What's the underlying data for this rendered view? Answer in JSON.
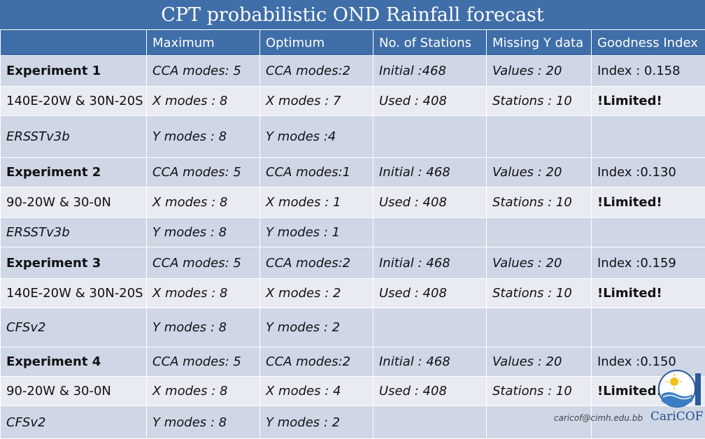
{
  "title": "CPT probabilistic OND Rainfall forecast",
  "header": [
    "",
    "Maximum",
    "Optimum",
    "No. of Stations",
    "Missing Y data",
    "Goodness Index"
  ],
  "rows": [
    [
      "Experiment 1",
      "CCA modes: 5",
      "CCA modes:2",
      "Initial :468",
      "Values : 20",
      "Index : 0.158"
    ],
    [
      "140E-20W & 30N-20S",
      "X modes : 8",
      "X modes : 7",
      "Used : 408",
      "Stations : 10",
      "!Limited!"
    ],
    [
      "ERSSTv3b",
      "Y modes : 8",
      "Y modes :4",
      "",
      "",
      ""
    ],
    [
      "Experiment 2",
      "CCA modes: 5",
      "CCA modes:1",
      "Initial : 468",
      "Values : 20",
      "Index :0.130"
    ],
    [
      "90-20W & 30-0N",
      "X modes : 8",
      "X modes : 1",
      "Used : 408",
      "Stations : 10",
      "!Limited!"
    ],
    [
      "ERSSTv3b",
      "Y modes : 8",
      "Y modes : 1",
      "",
      "",
      ""
    ],
    [
      "Experiment 3",
      "CCA modes: 5",
      "CCA modes:2",
      "Initial : 468",
      "Values : 20",
      "Index :0.159"
    ],
    [
      "140E-20W & 30N-20S",
      "X modes : 8",
      "X modes : 2",
      "Used : 408",
      "Stations : 10",
      "!Limited!"
    ],
    [
      "CFSv2",
      "Y modes : 8",
      "Y modes : 2",
      "",
      "",
      ""
    ],
    [
      "Experiment 4",
      "CCA modes: 5",
      "CCA modes:2",
      "Initial : 468",
      "Values : 20",
      "Index :0.150"
    ],
    [
      "90-20W & 30-0N",
      "X modes : 8",
      "X modes : 4",
      "Used : 408",
      "Stations : 10",
      "!Limited!"
    ],
    [
      "CFSv2",
      "Y modes : 8",
      "Y modes : 2",
      "",
      "",
      ""
    ]
  ],
  "footer": {
    "email": "caricof@cimh.edu.bb",
    "brand": "CariCOF"
  },
  "colors": {
    "header_bg": "#3f6ea8",
    "band_dark": "#cfd6e6",
    "band_light": "#e8ebf2"
  }
}
